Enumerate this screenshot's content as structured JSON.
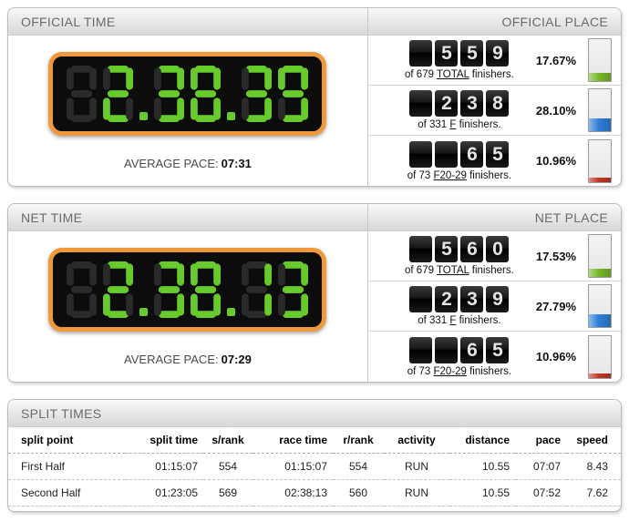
{
  "colors": {
    "clock_lit": "#68cb2c",
    "clock_unlit": "#2a2a2a",
    "clock_frame": "#f0993c",
    "bar_green": "#76b82a",
    "bar_blue": "#2e7ed8",
    "bar_red": "#c23522"
  },
  "sections": [
    {
      "time_title": "OFFICIAL TIME",
      "place_title": "OFFICIAL PLACE",
      "clock_display": " 2.38.39",
      "pace_label": "AVERAGE PACE:",
      "pace_value": "07:31",
      "places": [
        {
          "counter": " 559",
          "of_text": "of 679",
          "group_link": "TOTAL",
          "after_text": "finishers.",
          "percent": "17.67%",
          "percent_value": 17.67,
          "bar_color": "#76b82a"
        },
        {
          "counter": " 238",
          "of_text": "of 331",
          "group_link": "F",
          "after_text": "finishers.",
          "percent": "28.10%",
          "percent_value": 28.1,
          "bar_color": "#2e7ed8"
        },
        {
          "counter": "  65",
          "of_text": "of 73",
          "group_link": "F20-29",
          "after_text": "finishers.",
          "percent": "10.96%",
          "percent_value": 10.96,
          "bar_color": "#c23522"
        }
      ]
    },
    {
      "time_title": "NET TIME",
      "place_title": "NET PLACE",
      "clock_display": " 2.38.13",
      "pace_label": "AVERAGE PACE:",
      "pace_value": "07:29",
      "places": [
        {
          "counter": " 560",
          "of_text": "of 679",
          "group_link": "TOTAL",
          "after_text": "finishers.",
          "percent": "17.53%",
          "percent_value": 17.53,
          "bar_color": "#76b82a"
        },
        {
          "counter": " 239",
          "of_text": "of 331",
          "group_link": "F",
          "after_text": "finishers.",
          "percent": "27.79%",
          "percent_value": 27.79,
          "bar_color": "#2e7ed8"
        },
        {
          "counter": "  65",
          "of_text": "of 73",
          "group_link": "F20-29",
          "after_text": "finishers.",
          "percent": "10.96%",
          "percent_value": 10.96,
          "bar_color": "#c23522"
        }
      ]
    }
  ],
  "split_times": {
    "title": "SPLIT TIMES",
    "columns": [
      "split point",
      "split time",
      "s/rank",
      "race time",
      "r/rank",
      "activity",
      "distance",
      "pace",
      "speed"
    ],
    "rows": [
      [
        "First Half",
        "01:15:07",
        "554",
        "01:15:07",
        "554",
        "RUN",
        "10.55",
        "07:07",
        "8.43"
      ],
      [
        "Second Half",
        "01:23:05",
        "569",
        "02:38:13",
        "560",
        "RUN",
        "10.55",
        "07:52",
        "7.62"
      ]
    ]
  }
}
